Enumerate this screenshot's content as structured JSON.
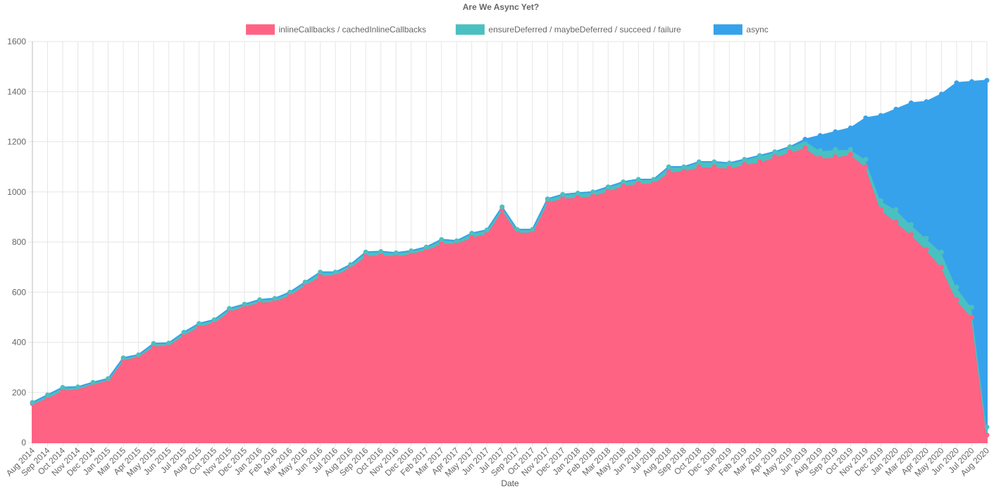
{
  "chart_data": {
    "type": "area",
    "stacked": true,
    "title": "Are We Async Yet?",
    "xlabel": "Date",
    "ylabel": "",
    "ylim": [
      0,
      1600
    ],
    "yticks": [
      0,
      200,
      400,
      600,
      800,
      1000,
      1200,
      1400,
      1600
    ],
    "grid": true,
    "legend_position": "top",
    "categories": [
      "Aug 2014",
      "Sep 2014",
      "Oct 2014",
      "Nov 2014",
      "Dec 2014",
      "Jan 2015",
      "Mar 2015",
      "Apr 2015",
      "May 2015",
      "Jun 2015",
      "Jul 2015",
      "Aug 2015",
      "Oct 2015",
      "Nov 2015",
      "Dec 2015",
      "Jan 2016",
      "Feb 2016",
      "Mar 2016",
      "May 2016",
      "Jun 2016",
      "Jul 2016",
      "Aug 2016",
      "Sep 2016",
      "Oct 2016",
      "Nov 2016",
      "Dec 2016",
      "Feb 2017",
      "Mar 2017",
      "Apr 2017",
      "May 2017",
      "Jun 2017",
      "Jul 2017",
      "Sep 2017",
      "Oct 2017",
      "Nov 2017",
      "Dec 2017",
      "Jan 2018",
      "Feb 2018",
      "Mar 2018",
      "May 2018",
      "Jun 2018",
      "Jul 2018",
      "Aug 2018",
      "Sep 2018",
      "Oct 2018",
      "Dec 2018",
      "Jan 2019",
      "Feb 2019",
      "Mar 2019",
      "Apr 2019",
      "May 2019",
      "Jun 2019",
      "Aug 2019",
      "Sep 2019",
      "Oct 2019",
      "Nov 2019",
      "Dec 2019",
      "Jan 2020",
      "Mar 2020",
      "Apr 2020",
      "May 2020",
      "Jun 2020",
      "Jul 2020",
      "Aug 2020"
    ],
    "series": [
      {
        "name": "inlineCallbacks / cachedInlineCallbacks",
        "color": "#ff6384",
        "values": [
          155,
          180,
          210,
          215,
          235,
          250,
          330,
          345,
          385,
          390,
          430,
          465,
          480,
          525,
          545,
          560,
          565,
          590,
          630,
          665,
          670,
          700,
          745,
          750,
          745,
          755,
          770,
          795,
          795,
          820,
          835,
          930,
          840,
          840,
          960,
          975,
          980,
          985,
          1005,
          1025,
          1035,
          1035,
          1080,
          1085,
          1100,
          1100,
          1095,
          1110,
          1120,
          1140,
          1160,
          1175,
          1135,
          1140,
          1150,
          1100,
          930,
          880,
          830,
          770,
          700,
          570,
          500,
          30
        ]
      },
      {
        "name": "ensureDeferred / maybeDeferred / succeed / failure",
        "color": "#4bc0c0",
        "values": [
          5,
          10,
          10,
          7,
          5,
          5,
          8,
          5,
          10,
          7,
          10,
          10,
          10,
          10,
          7,
          10,
          10,
          10,
          10,
          15,
          10,
          10,
          15,
          12,
          12,
          10,
          10,
          15,
          10,
          15,
          13,
          10,
          10,
          10,
          12,
          15,
          15,
          15,
          15,
          15,
          15,
          15,
          20,
          15,
          20,
          20,
          20,
          20,
          25,
          20,
          20,
          30,
          30,
          30,
          20,
          30,
          35,
          50,
          40,
          45,
          60,
          50,
          40,
          32
        ]
      },
      {
        "name": "async",
        "color": "#36a2eb",
        "values": [
          0,
          0,
          0,
          0,
          0,
          0,
          0,
          0,
          0,
          0,
          0,
          0,
          0,
          0,
          0,
          0,
          0,
          0,
          0,
          0,
          0,
          0,
          0,
          0,
          0,
          0,
          0,
          0,
          0,
          0,
          0,
          0,
          0,
          0,
          0,
          0,
          0,
          0,
          0,
          0,
          0,
          0,
          0,
          0,
          0,
          0,
          0,
          0,
          0,
          0,
          0,
          5,
          60,
          70,
          85,
          165,
          340,
          400,
          485,
          545,
          630,
          815,
          900,
          1383
        ]
      }
    ]
  }
}
